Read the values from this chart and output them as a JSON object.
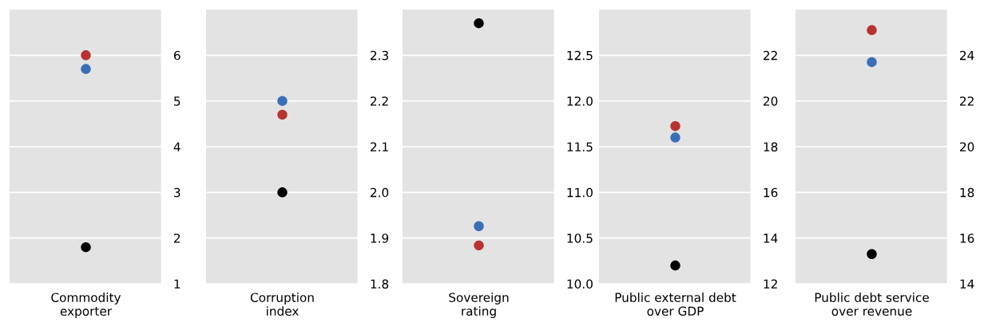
{
  "chart_data": [
    {
      "type": "scatter",
      "categories": [
        "Commodity\nexporter"
      ],
      "ylim": [
        1,
        7
      ],
      "yticks": [
        1,
        2,
        3,
        4,
        5,
        6
      ],
      "grid": "y",
      "marker": "circle",
      "series": [
        {
          "color": "#000000",
          "values": [
            1.8
          ]
        },
        {
          "color": "#3a6fb8",
          "values": [
            5.7
          ]
        },
        {
          "color": "#b83232",
          "values": [
            6.0
          ]
        }
      ]
    },
    {
      "type": "scatter",
      "categories": [
        "Corruption\nindex"
      ],
      "ylim": [
        1.8,
        2.4
      ],
      "yticks": [
        {
          "value": 1.8,
          "label": "1.8"
        },
        {
          "value": 1.9,
          "label": "1.9"
        },
        {
          "value": 2.0,
          "label": "2.0"
        },
        {
          "value": 2.1,
          "label": "2.1"
        },
        {
          "value": 2.2,
          "label": "2.2"
        },
        {
          "value": 2.3,
          "label": "2.3"
        }
      ],
      "grid": "y",
      "marker": "circle",
      "series": [
        {
          "color": "#000000",
          "values": [
            2.0
          ]
        },
        {
          "color": "#3a6fb8",
          "values": [
            2.2
          ]
        },
        {
          "color": "#b83232",
          "values": [
            2.17
          ]
        }
      ]
    },
    {
      "type": "scatter",
      "categories": [
        "Sovereign\nrating"
      ],
      "ylim": [
        10,
        13
      ],
      "yticks": [
        {
          "value": 10,
          "label": "10.0"
        },
        {
          "value": 10.5,
          "label": "10.5"
        },
        {
          "value": 11,
          "label": "11.0"
        },
        {
          "value": 11.5,
          "label": "11.5"
        },
        {
          "value": 12,
          "label": "12.0"
        },
        {
          "value": 12.5,
          "label": "12.5"
        }
      ],
      "grid": "y",
      "marker": "circle",
      "series": [
        {
          "color": "#000000",
          "values": [
            12.85
          ]
        },
        {
          "color": "#3a6fb8",
          "values": [
            10.63
          ]
        },
        {
          "color": "#b83232",
          "values": [
            10.42
          ]
        }
      ]
    },
    {
      "type": "scatter",
      "categories": [
        "Public external debt\nover GDP"
      ],
      "ylim": [
        12,
        24
      ],
      "yticks": [
        12,
        14,
        16,
        18,
        20,
        22
      ],
      "grid": "y",
      "marker": "circle",
      "series": [
        {
          "color": "#000000",
          "values": [
            12.8
          ]
        },
        {
          "color": "#3a6fb8",
          "values": [
            18.4
          ]
        },
        {
          "color": "#b83232",
          "values": [
            18.9
          ]
        }
      ]
    },
    {
      "type": "scatter",
      "categories": [
        "Public debt service\nover revenue"
      ],
      "ylim": [
        14,
        26
      ],
      "yticks": [
        14,
        16,
        18,
        20,
        22,
        24
      ],
      "grid": "y",
      "marker": "circle",
      "series": [
        {
          "color": "#000000",
          "values": [
            15.3
          ]
        },
        {
          "color": "#3a6fb8",
          "values": [
            23.7
          ]
        },
        {
          "color": "#b83232",
          "values": [
            25.1
          ]
        }
      ]
    }
  ]
}
